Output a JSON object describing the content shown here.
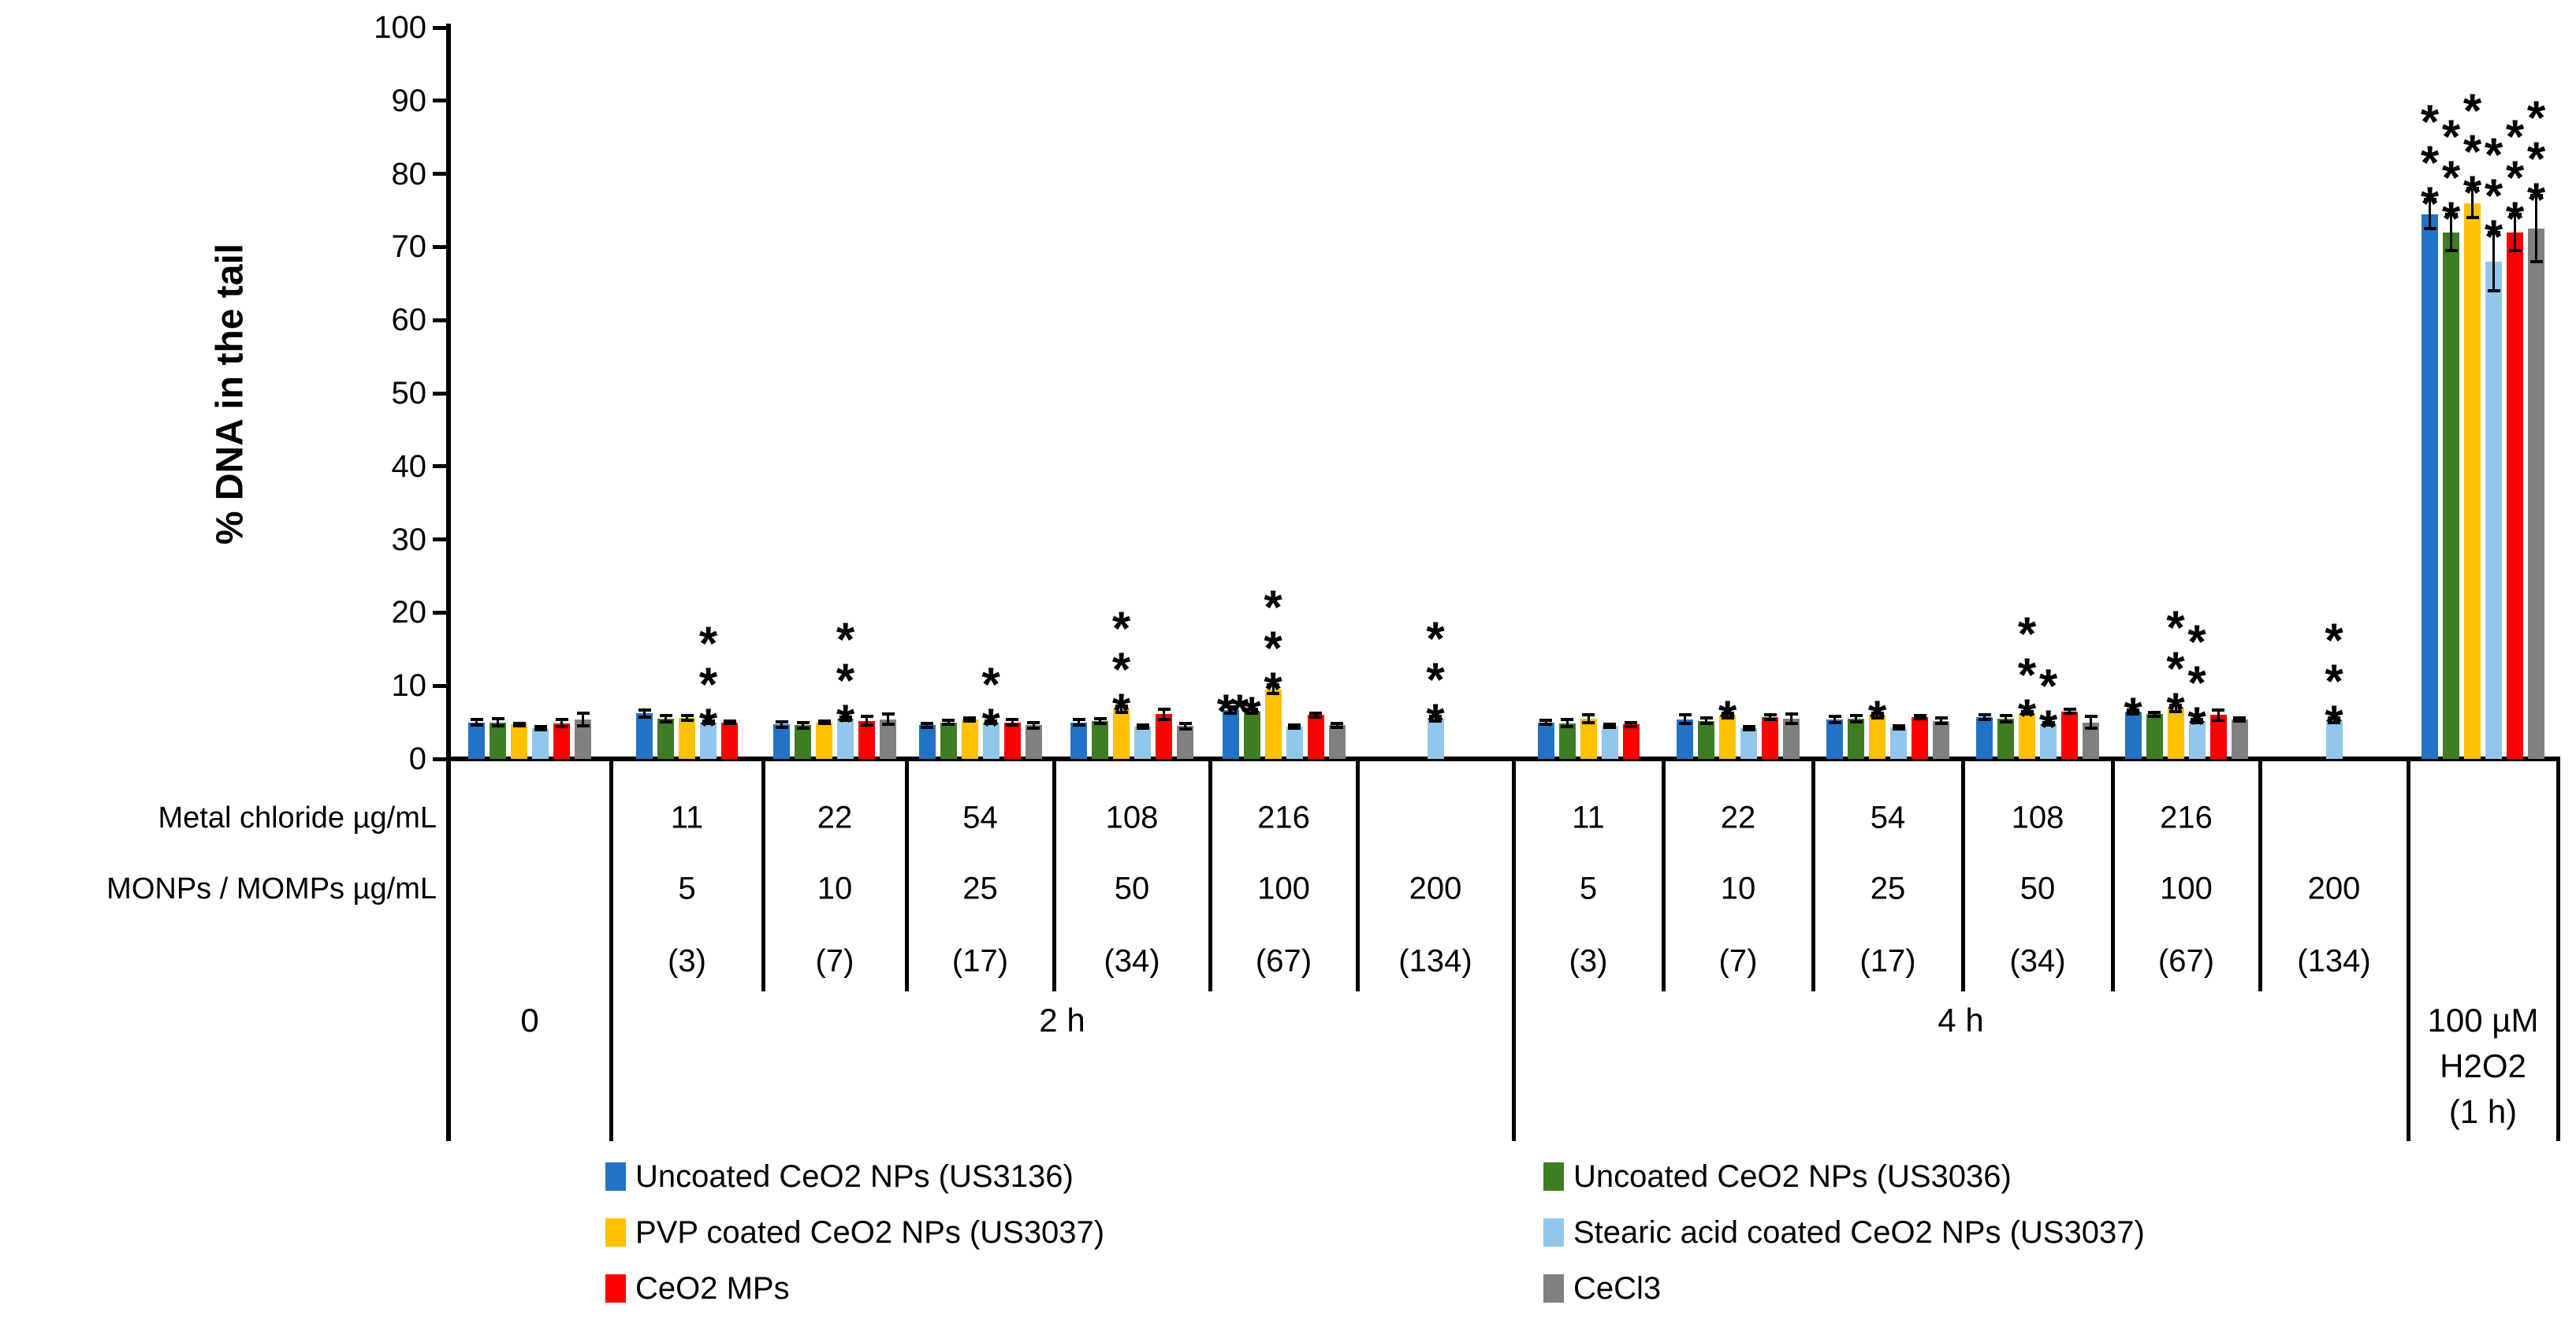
{
  "figure": {
    "ylabel": "% DNA in the tail"
  },
  "chart_data": {
    "type": "bar",
    "title": "",
    "ylabel": "% DNA in the tail",
    "ylim": [
      0,
      100
    ],
    "ytick_step": 10,
    "grid": false,
    "legend_position": "bottom",
    "series": [
      {
        "name": "Uncoated CeO2 NPs (US3136)",
        "color": "#2273C8"
      },
      {
        "name": "Uncoated CeO2 NPs (US3036)",
        "color": "#3E7D23"
      },
      {
        "name": "PVP coated CeO2 NPs (US3037)",
        "color": "#FFC000"
      },
      {
        "name": "Stearic acid coated CeO2 NPs (US3037)",
        "color": "#93C6EB"
      },
      {
        "name": "CeO2 MPs",
        "color": "#FF0000"
      },
      {
        "name": "CeCl3",
        "color": "#808080"
      }
    ],
    "legend_columns": [
      [
        0,
        2,
        4
      ],
      [
        1,
        3,
        5
      ]
    ],
    "axis_rows": {
      "metal_chloride_label": "Metal chloride µg/mL",
      "monp_label": "MONPs / MOMPs µg/mL"
    },
    "time_spans": [
      {
        "label": "0",
        "start": 0,
        "end": 1
      },
      {
        "label": "2 h",
        "start": 1,
        "end": 7
      },
      {
        "label": "4 h",
        "start": 7,
        "end": 13
      },
      {
        "label_lines": [
          "100 µM",
          "H2O2",
          "(1 h)"
        ],
        "start": 13,
        "end": 14
      }
    ],
    "groups": [
      {
        "metal_chloride": "",
        "monp": "",
        "nominal": "",
        "bars": [
          {
            "series": 0,
            "value": 5.0,
            "err": 0.4,
            "sig": ""
          },
          {
            "series": 1,
            "value": 5.0,
            "err": 0.5,
            "sig": ""
          },
          {
            "series": 2,
            "value": 4.7,
            "err": 0.2,
            "sig": ""
          },
          {
            "series": 3,
            "value": 4.2,
            "err": 0.2,
            "sig": ""
          },
          {
            "series": 4,
            "value": 4.9,
            "err": 0.5,
            "sig": ""
          },
          {
            "series": 5,
            "value": 5.4,
            "err": 0.9,
            "sig": ""
          }
        ]
      },
      {
        "metal_chloride": "11",
        "monp": "5",
        "nominal": "(3)",
        "bars": [
          {
            "series": 0,
            "value": 6.2,
            "err": 0.5,
            "sig": ""
          },
          {
            "series": 1,
            "value": 5.5,
            "err": 0.4,
            "sig": ""
          },
          {
            "series": 2,
            "value": 5.6,
            "err": 0.3,
            "sig": ""
          },
          {
            "series": 3,
            "value": 5.0,
            "err": 0.2,
            "sig": "***"
          },
          {
            "series": 4,
            "value": 5.0,
            "err": 0.2,
            "sig": ""
          }
        ]
      },
      {
        "metal_chloride": "22",
        "monp": "10",
        "nominal": "(7)",
        "bars": [
          {
            "series": 0,
            "value": 4.7,
            "err": 0.4,
            "sig": ""
          },
          {
            "series": 1,
            "value": 4.6,
            "err": 0.4,
            "sig": ""
          },
          {
            "series": 2,
            "value": 5.0,
            "err": 0.2,
            "sig": ""
          },
          {
            "series": 3,
            "value": 5.5,
            "err": 0.2,
            "sig": "***"
          },
          {
            "series": 4,
            "value": 5.2,
            "err": 0.6,
            "sig": ""
          },
          {
            "series": 5,
            "value": 5.4,
            "err": 0.7,
            "sig": ""
          }
        ]
      },
      {
        "metal_chloride": "54",
        "monp": "25",
        "nominal": "(17)",
        "bars": [
          {
            "series": 0,
            "value": 4.6,
            "err": 0.3,
            "sig": ""
          },
          {
            "series": 1,
            "value": 5.0,
            "err": 0.3,
            "sig": ""
          },
          {
            "series": 2,
            "value": 5.4,
            "err": 0.2,
            "sig": ""
          },
          {
            "series": 3,
            "value": 5.0,
            "err": 0.15,
            "sig": "**"
          },
          {
            "series": 4,
            "value": 5.0,
            "err": 0.4,
            "sig": ""
          },
          {
            "series": 5,
            "value": 4.6,
            "err": 0.4,
            "sig": ""
          }
        ]
      },
      {
        "metal_chloride": "108",
        "monp": "50",
        "nominal": "(34)",
        "bars": [
          {
            "series": 0,
            "value": 5.0,
            "err": 0.4,
            "sig": ""
          },
          {
            "series": 1,
            "value": 5.2,
            "err": 0.3,
            "sig": ""
          },
          {
            "series": 2,
            "value": 6.8,
            "err": 0.4,
            "sig": "***"
          },
          {
            "series": 3,
            "value": 4.4,
            "err": 0.2,
            "sig": ""
          },
          {
            "series": 4,
            "value": 6.1,
            "err": 0.7,
            "sig": ""
          },
          {
            "series": 5,
            "value": 4.5,
            "err": 0.4,
            "sig": ""
          }
        ]
      },
      {
        "metal_chloride": "216",
        "monp": "100",
        "nominal": "(67)",
        "bars": [
          {
            "series": 0,
            "value": 6.7,
            "err": 0.4,
            "sig": "**",
            "sig_dir": "h"
          },
          {
            "series": 1,
            "value": 6.5,
            "err": 0.3,
            "sig": "*"
          },
          {
            "series": 2,
            "value": 9.5,
            "err": 0.6,
            "sig": "***"
          },
          {
            "series": 3,
            "value": 4.4,
            "err": 0.2,
            "sig": ""
          },
          {
            "series": 4,
            "value": 6.0,
            "err": 0.3,
            "sig": ""
          },
          {
            "series": 5,
            "value": 4.6,
            "err": 0.3,
            "sig": ""
          }
        ]
      },
      {
        "metal_chloride": "",
        "monp": "200",
        "nominal": "(134)",
        "bars": [
          {
            "series": 3,
            "value": 5.5,
            "err": 0.3,
            "sig": "***"
          }
        ]
      },
      {
        "metal_chloride": "11",
        "monp": "5",
        "nominal": "(3)",
        "bars": [
          {
            "series": 0,
            "value": 5.0,
            "err": 0.3,
            "sig": ""
          },
          {
            "series": 1,
            "value": 4.9,
            "err": 0.5,
            "sig": ""
          },
          {
            "series": 2,
            "value": 5.5,
            "err": 0.5,
            "sig": ""
          },
          {
            "series": 3,
            "value": 4.5,
            "err": 0.2,
            "sig": ""
          },
          {
            "series": 4,
            "value": 4.7,
            "err": 0.3,
            "sig": ""
          }
        ]
      },
      {
        "metal_chloride": "22",
        "monp": "10",
        "nominal": "(7)",
        "bars": [
          {
            "series": 0,
            "value": 5.4,
            "err": 0.6,
            "sig": ""
          },
          {
            "series": 1,
            "value": 5.2,
            "err": 0.4,
            "sig": ""
          },
          {
            "series": 2,
            "value": 5.9,
            "err": 0.3,
            "sig": "*"
          },
          {
            "series": 3,
            "value": 4.2,
            "err": 0.2,
            "sig": ""
          },
          {
            "series": 4,
            "value": 5.7,
            "err": 0.3,
            "sig": ""
          },
          {
            "series": 5,
            "value": 5.5,
            "err": 0.6,
            "sig": ""
          }
        ]
      },
      {
        "metal_chloride": "54",
        "monp": "25",
        "nominal": "(17)",
        "bars": [
          {
            "series": 0,
            "value": 5.4,
            "err": 0.4,
            "sig": ""
          },
          {
            "series": 1,
            "value": 5.5,
            "err": 0.4,
            "sig": ""
          },
          {
            "series": 2,
            "value": 5.9,
            "err": 0.3,
            "sig": "*"
          },
          {
            "series": 3,
            "value": 4.3,
            "err": 0.2,
            "sig": ""
          },
          {
            "series": 4,
            "value": 5.7,
            "err": 0.2,
            "sig": ""
          },
          {
            "series": 5,
            "value": 5.2,
            "err": 0.4,
            "sig": ""
          }
        ]
      },
      {
        "metal_chloride": "108",
        "monp": "50",
        "nominal": "(34)",
        "bars": [
          {
            "series": 0,
            "value": 5.7,
            "err": 0.3,
            "sig": ""
          },
          {
            "series": 1,
            "value": 5.5,
            "err": 0.4,
            "sig": ""
          },
          {
            "series": 2,
            "value": 6.3,
            "err": 0.2,
            "sig": "***"
          },
          {
            "series": 3,
            "value": 4.8,
            "err": 0.2,
            "sig": "**"
          },
          {
            "series": 4,
            "value": 6.5,
            "err": 0.3,
            "sig": ""
          },
          {
            "series": 5,
            "value": 5.0,
            "err": 0.8,
            "sig": ""
          }
        ]
      },
      {
        "metal_chloride": "216",
        "monp": "100",
        "nominal": "(67)",
        "bars": [
          {
            "series": 0,
            "value": 6.4,
            "err": 0.3,
            "sig": "*"
          },
          {
            "series": 1,
            "value": 6.1,
            "err": 0.3,
            "sig": ""
          },
          {
            "series": 2,
            "value": 6.9,
            "err": 0.4,
            "sig": "***"
          },
          {
            "series": 3,
            "value": 5.2,
            "err": 0.2,
            "sig": "***"
          },
          {
            "series": 4,
            "value": 6.0,
            "err": 0.7,
            "sig": ""
          },
          {
            "series": 5,
            "value": 5.4,
            "err": 0.2,
            "sig": ""
          }
        ]
      },
      {
        "metal_chloride": "",
        "monp": "200",
        "nominal": "(134)",
        "bars": [
          {
            "series": 3,
            "value": 5.3,
            "err": 0.3,
            "sig": "***"
          }
        ]
      },
      {
        "metal_chloride": "",
        "monp": "",
        "nominal": "",
        "bars": [
          {
            "series": 0,
            "value": 74.5,
            "err": 2.0,
            "sig": "***"
          },
          {
            "series": 1,
            "value": 72.0,
            "err": 2.5,
            "sig": "***"
          },
          {
            "series": 2,
            "value": 76.0,
            "err": 2.0,
            "sig": "***"
          },
          {
            "series": 3,
            "value": 68.0,
            "err": 4.0,
            "sig": "***"
          },
          {
            "series": 4,
            "value": 72.0,
            "err": 2.5,
            "sig": "***"
          },
          {
            "series": 5,
            "value": 72.5,
            "err": 4.5,
            "sig": "***"
          }
        ]
      }
    ]
  }
}
